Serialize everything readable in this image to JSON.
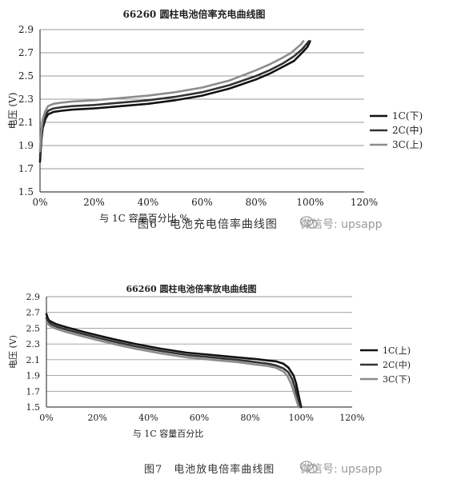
{
  "chart_data": [
    {
      "type": "line",
      "title": "66260 圆柱电池倍率充电曲线图",
      "xlabel": "与 1C 容量百分比 %",
      "ylabel": "电压 (V)",
      "xlim": [
        0,
        120
      ],
      "ylim": [
        1.5,
        2.9
      ],
      "x_ticks": [
        "0%",
        "20%",
        "40%",
        "60%",
        "80%",
        "100%",
        "120%"
      ],
      "y_ticks": [
        "1.5",
        "1.7",
        "1.9",
        "2.1",
        "2.3",
        "2.5",
        "2.7",
        "2.9"
      ],
      "grid": true,
      "legend": "right",
      "series": [
        {
          "name": "1C(下)",
          "color": "#111111",
          "x": [
            0,
            0.5,
            1,
            2,
            3,
            5,
            8,
            12,
            20,
            30,
            40,
            50,
            60,
            70,
            80,
            85,
            90,
            94,
            97,
            99,
            100
          ],
          "y": [
            1.76,
            1.95,
            2.05,
            2.13,
            2.17,
            2.19,
            2.2,
            2.21,
            2.22,
            2.24,
            2.26,
            2.29,
            2.33,
            2.39,
            2.47,
            2.52,
            2.58,
            2.63,
            2.7,
            2.75,
            2.8
          ]
        },
        {
          "name": "2C(中)",
          "color": "#333333",
          "x": [
            0,
            0.5,
            1,
            2,
            3,
            5,
            8,
            12,
            20,
            30,
            40,
            50,
            60,
            70,
            80,
            85,
            90,
            94,
            97,
            98.5,
            99.5
          ],
          "y": [
            1.8,
            1.98,
            2.08,
            2.16,
            2.2,
            2.22,
            2.23,
            2.24,
            2.25,
            2.27,
            2.29,
            2.32,
            2.36,
            2.42,
            2.5,
            2.55,
            2.61,
            2.67,
            2.73,
            2.77,
            2.8
          ]
        },
        {
          "name": "3C(上)",
          "color": "#8c8c8c",
          "x": [
            0,
            0.5,
            1,
            2,
            3,
            5,
            8,
            12,
            20,
            30,
            40,
            50,
            60,
            70,
            80,
            85,
            90,
            93,
            95,
            96.5,
            97.5
          ],
          "y": [
            1.85,
            2.03,
            2.13,
            2.2,
            2.24,
            2.26,
            2.27,
            2.28,
            2.29,
            2.31,
            2.33,
            2.36,
            2.4,
            2.46,
            2.55,
            2.6,
            2.66,
            2.7,
            2.74,
            2.77,
            2.8
          ]
        }
      ],
      "caption": "图6　电池充电倍率曲线图",
      "watermark": "微信号: upsapp"
    },
    {
      "type": "line",
      "title": "66260 圆柱电池倍率放电曲线图",
      "xlabel": "与 1C 容量百分比",
      "ylabel": "电压 (V)",
      "xlim": [
        0,
        120
      ],
      "ylim": [
        1.5,
        2.9
      ],
      "x_ticks": [
        "0%",
        "20%",
        "40%",
        "60%",
        "80%",
        "100%",
        "120%"
      ],
      "y_ticks": [
        "1.5",
        "1.7",
        "1.9",
        "2.1",
        "2.3",
        "2.5",
        "2.7",
        "2.9"
      ],
      "grid": true,
      "legend": "right",
      "series": [
        {
          "name": "1C(上)",
          "color": "#111111",
          "x": [
            0,
            0.5,
            1,
            2,
            4,
            8,
            15,
            25,
            35,
            45,
            55,
            65,
            75,
            82,
            87,
            90,
            93,
            95,
            97,
            98,
            99,
            100
          ],
          "y": [
            2.68,
            2.63,
            2.6,
            2.58,
            2.55,
            2.51,
            2.45,
            2.37,
            2.3,
            2.24,
            2.19,
            2.16,
            2.13,
            2.11,
            2.09,
            2.08,
            2.05,
            2.0,
            1.9,
            1.8,
            1.65,
            1.5
          ]
        },
        {
          "name": "2C(中)",
          "color": "#333333",
          "x": [
            0,
            0.5,
            1,
            2,
            4,
            8,
            15,
            25,
            35,
            45,
            55,
            65,
            75,
            82,
            87,
            90,
            93,
            95,
            96.5,
            97.5,
            98.5,
            99.5
          ],
          "y": [
            2.63,
            2.6,
            2.57,
            2.55,
            2.52,
            2.48,
            2.42,
            2.34,
            2.27,
            2.21,
            2.16,
            2.13,
            2.1,
            2.07,
            2.05,
            2.03,
            1.99,
            1.94,
            1.85,
            1.75,
            1.62,
            1.5
          ]
        },
        {
          "name": "3C(下)",
          "color": "#8c8c8c",
          "x": [
            0,
            0.5,
            1,
            2,
            4,
            8,
            15,
            25,
            35,
            45,
            55,
            65,
            75,
            82,
            87,
            90,
            93,
            94.5,
            96,
            97,
            98,
            99
          ],
          "y": [
            2.58,
            2.56,
            2.54,
            2.52,
            2.49,
            2.45,
            2.39,
            2.31,
            2.24,
            2.18,
            2.13,
            2.1,
            2.07,
            2.04,
            2.02,
            2.0,
            1.95,
            1.9,
            1.8,
            1.7,
            1.6,
            1.5
          ]
        }
      ],
      "caption": "图7　电池放电倍率曲线图",
      "watermark": "微信号: upsapp"
    }
  ]
}
